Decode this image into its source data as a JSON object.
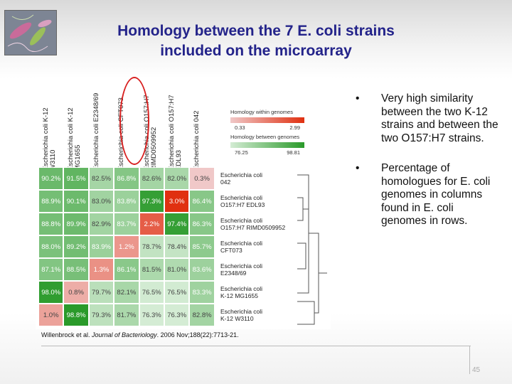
{
  "title": {
    "line1": "Homology between the 7 E. coli strains",
    "line2": "included on the microarray"
  },
  "legend": {
    "within_label": "Homology within genomes",
    "within_min": "0.33",
    "within_max": "2.99",
    "between_label": "Homology between genomes",
    "between_min": "76.25",
    "between_max": "98.81"
  },
  "columns": [
    "Escherichia coli K-12 W3110",
    "Escherichia coli K-12 MG1655",
    "Escherichia coli E2348/69",
    "Escherichia coli CFT073",
    "Escherichia coli O157:H7 RIMD0509952",
    "Escherichia coli O157:H7 EDL93",
    "Escherichia coli 042"
  ],
  "rows": [
    {
      "label1": "Escherichia coli",
      "label2": "042",
      "values": [
        "90.2%",
        "91.5%",
        "82.5%",
        "86.8%",
        "82.6%",
        "82.0%",
        "0.3%"
      ]
    },
    {
      "label1": "Escherichia coli",
      "label2": "O157:H7 EDL93",
      "values": [
        "88.9%",
        "90.1%",
        "83.0%",
        "83.8%",
        "97.3%",
        "3.0%",
        "86.4%"
      ]
    },
    {
      "label1": "Escherichia coli",
      "label2": "O157:H7 RIMD0509952",
      "values": [
        "88.8%",
        "89.9%",
        "82.9%",
        "83.7%",
        "2.2%",
        "97.4%",
        "86.3%"
      ]
    },
    {
      "label1": "Escherichia coli",
      "label2": "CFT073",
      "values": [
        "88.0%",
        "89.2%",
        "83.9%",
        "1.2%",
        "78.7%",
        "78.4%",
        "85.7%"
      ]
    },
    {
      "label1": "Escherichia coli",
      "label2": "E2348/69",
      "values": [
        "87.1%",
        "88.5%",
        "1.3%",
        "86.1%",
        "81.5%",
        "81.0%",
        "83.6%"
      ]
    },
    {
      "label1": "Escherichia coli",
      "label2": "K-12 MG1655",
      "values": [
        "98.0%",
        "0.8%",
        "79.7%",
        "82.1%",
        "76.5%",
        "76.5%",
        "83.3%"
      ]
    },
    {
      "label1": "Escherichia coli",
      "label2": "K-12 W3110",
      "values": [
        "1.0%",
        "98.8%",
        "79.3%",
        "81.7%",
        "76.3%",
        "76.3%",
        "82.8%"
      ]
    }
  ],
  "citation": {
    "prefix": "Willenbrock et al. ",
    "journal": "Journal of Bacteriology",
    "suffix": ". 2006 Nov;188(22):7713-21."
  },
  "bullets": [
    "Very high similarity between the two K-12 strains and between the two O157:H7 strains.",
    "Percentage of homologues for E. coli genomes in columns found in E. coli genomes in rows."
  ],
  "bullet_symbol": "•",
  "page_number": "45",
  "colors": {
    "title": "#23238a",
    "within_scale": [
      "#f0c8c8",
      "#e03010"
    ],
    "between_scale": [
      "#d4ecd4",
      "#2a9a2a"
    ],
    "circle": "#d82020"
  }
}
